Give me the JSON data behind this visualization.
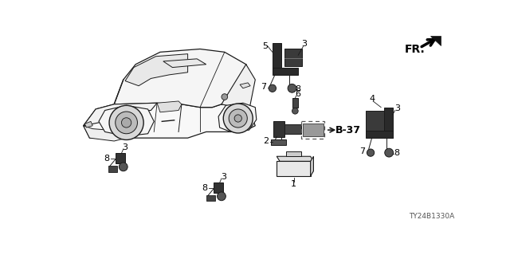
{
  "bg_color": "#ffffff",
  "fr_arrow_text": "FR.",
  "part_number": "TY24B1330A",
  "b37_label": "B-37",
  "line_color": "#1a1a1a",
  "text_color": "#000000",
  "fig_width": 6.4,
  "fig_height": 3.2,
  "dpi": 100
}
